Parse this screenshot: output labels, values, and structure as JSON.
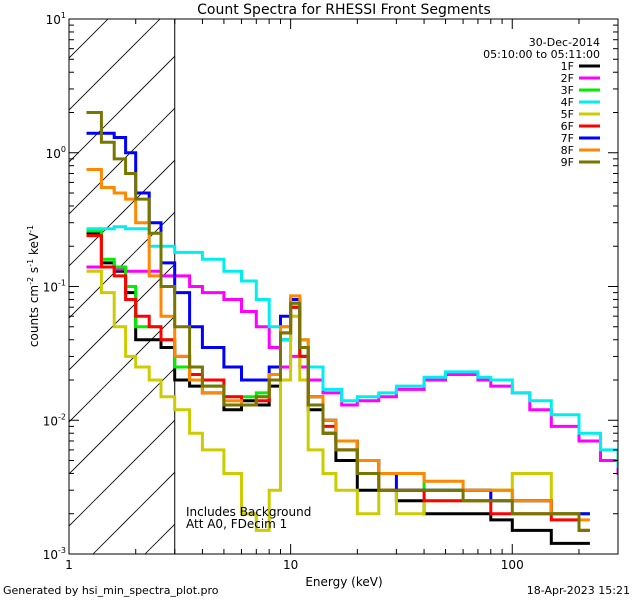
{
  "chart_data": {
    "type": "line",
    "title": "Count Spectra for RHESSI Front Segments",
    "xlabel": "Energy (keV)",
    "ylabel_base": "counts cm",
    "ylabel_sup1": "-2",
    "ylabel_mid": " s",
    "ylabel_sup2": "-1",
    "ylabel_end": " keV",
    "ylabel_sup3": "-1",
    "xscale": "log",
    "yscale": "log",
    "xlim": [
      1.0,
      300.0
    ],
    "ylim": [
      0.001,
      10.0
    ],
    "x_ticks": [
      {
        "value": 1,
        "label": "1"
      },
      {
        "value": 10,
        "label": "10"
      },
      {
        "value": 100,
        "label": "100"
      }
    ],
    "y_ticks": [
      {
        "value": 0.001,
        "base": "10",
        "exp": "-3"
      },
      {
        "value": 0.01,
        "base": "10",
        "exp": "-2"
      },
      {
        "value": 0.1,
        "base": "10",
        "exp": "-1"
      },
      {
        "value": 1,
        "base": "10",
        "exp": "0"
      },
      {
        "value": 10,
        "base": "10",
        "exp": "1"
      }
    ],
    "date": "30-Dec-2014",
    "time_range": "05:10:00 to 05:11:00",
    "hatched_region": {
      "x_from": 1.0,
      "x_to": 3.0
    },
    "annotation_line1": "Includes Background",
    "annotation_line2": "Att A0, FDecim 1",
    "series": [
      {
        "name": "1F",
        "color": "#000000",
        "points": [
          [
            1.2,
            0.25
          ],
          [
            1.4,
            0.15
          ],
          [
            1.6,
            0.13
          ],
          [
            1.8,
            0.09
          ],
          [
            2.0,
            0.04
          ],
          [
            2.3,
            0.04
          ],
          [
            2.6,
            0.035
          ],
          [
            3.0,
            0.02
          ],
          [
            3.5,
            0.018
          ],
          [
            4,
            0.016
          ],
          [
            5,
            0.012
          ],
          [
            6,
            0.014
          ],
          [
            7,
            0.013
          ],
          [
            8,
            0.018
          ],
          [
            9,
            0.04
          ],
          [
            10,
            0.07
          ],
          [
            11,
            0.03
          ],
          [
            12,
            0.012
          ],
          [
            14,
            0.008
          ],
          [
            16,
            0.005
          ],
          [
            20,
            0.003
          ],
          [
            25,
            0.003
          ],
          [
            30,
            0.0025
          ],
          [
            40,
            0.002
          ],
          [
            60,
            0.002
          ],
          [
            80,
            0.0018
          ],
          [
            100,
            0.0015
          ],
          [
            150,
            0.0012
          ],
          [
            200,
            0.0012
          ]
        ]
      },
      {
        "name": "2F",
        "color": "#ff00ff",
        "points": [
          [
            1.2,
            0.14
          ],
          [
            1.4,
            0.14
          ],
          [
            1.6,
            0.135
          ],
          [
            1.8,
            0.13
          ],
          [
            2.0,
            0.13
          ],
          [
            2.3,
            0.13
          ],
          [
            2.6,
            0.12
          ],
          [
            3.0,
            0.12
          ],
          [
            3.5,
            0.1
          ],
          [
            4,
            0.09
          ],
          [
            5,
            0.08
          ],
          [
            6,
            0.065
          ],
          [
            7,
            0.05
          ],
          [
            8,
            0.035
          ],
          [
            9,
            0.025
          ],
          [
            10,
            0.03
          ],
          [
            11,
            0.025
          ],
          [
            12,
            0.02
          ],
          [
            14,
            0.016
          ],
          [
            17,
            0.013
          ],
          [
            20,
            0.014
          ],
          [
            25,
            0.015
          ],
          [
            30,
            0.017
          ],
          [
            40,
            0.02
          ],
          [
            50,
            0.022
          ],
          [
            60,
            0.022
          ],
          [
            70,
            0.02
          ],
          [
            80,
            0.018
          ],
          [
            100,
            0.016
          ],
          [
            120,
            0.012
          ],
          [
            150,
            0.009
          ],
          [
            200,
            0.007
          ],
          [
            250,
            0.005
          ],
          [
            300,
            0.004
          ]
        ]
      },
      {
        "name": "3F",
        "color": "#00ee00",
        "points": [
          [
            1.2,
            0.26
          ],
          [
            1.4,
            0.16
          ],
          [
            1.6,
            0.14
          ],
          [
            1.8,
            0.1
          ],
          [
            2.0,
            0.05
          ],
          [
            2.3,
            0.05
          ],
          [
            2.6,
            0.04
          ],
          [
            3.0,
            0.025
          ],
          [
            3.5,
            0.02
          ],
          [
            4,
            0.018
          ],
          [
            5,
            0.015
          ],
          [
            6,
            0.015
          ],
          [
            7,
            0.016
          ],
          [
            8,
            0.02
          ],
          [
            9,
            0.05
          ],
          [
            10,
            0.075
          ],
          [
            11,
            0.03
          ],
          [
            12,
            0.015
          ],
          [
            14,
            0.01
          ],
          [
            16,
            0.007
          ],
          [
            20,
            0.005
          ],
          [
            25,
            0.004
          ],
          [
            30,
            0.004
          ],
          [
            40,
            0.003
          ],
          [
            60,
            0.003
          ],
          [
            80,
            0.003
          ],
          [
            100,
            0.0025
          ],
          [
            150,
            0.002
          ],
          [
            200,
            0.002
          ]
        ]
      },
      {
        "name": "4F",
        "color": "#00eeee",
        "points": [
          [
            1.2,
            0.27
          ],
          [
            1.4,
            0.27
          ],
          [
            1.6,
            0.28
          ],
          [
            1.8,
            0.27
          ],
          [
            2.0,
            0.27
          ],
          [
            2.3,
            0.2
          ],
          [
            2.6,
            0.2
          ],
          [
            3.0,
            0.18
          ],
          [
            3.5,
            0.18
          ],
          [
            4,
            0.16
          ],
          [
            5,
            0.13
          ],
          [
            6,
            0.11
          ],
          [
            7,
            0.08
          ],
          [
            8,
            0.05
          ],
          [
            9,
            0.04
          ],
          [
            10,
            0.06
          ],
          [
            11,
            0.04
          ],
          [
            12,
            0.025
          ],
          [
            14,
            0.017
          ],
          [
            17,
            0.014
          ],
          [
            20,
            0.015
          ],
          [
            25,
            0.016
          ],
          [
            30,
            0.018
          ],
          [
            40,
            0.021
          ],
          [
            50,
            0.023
          ],
          [
            60,
            0.023
          ],
          [
            70,
            0.021
          ],
          [
            80,
            0.02
          ],
          [
            100,
            0.016
          ],
          [
            120,
            0.014
          ],
          [
            150,
            0.011
          ],
          [
            200,
            0.008
          ],
          [
            250,
            0.006
          ],
          [
            300,
            0.0045
          ]
        ]
      },
      {
        "name": "5F",
        "color": "#cccc00",
        "points": [
          [
            1.2,
            0.13
          ],
          [
            1.4,
            0.09
          ],
          [
            1.6,
            0.05
          ],
          [
            1.8,
            0.03
          ],
          [
            2.0,
            0.025
          ],
          [
            2.3,
            0.02
          ],
          [
            2.6,
            0.015
          ],
          [
            3.0,
            0.012
          ],
          [
            3.5,
            0.008
          ],
          [
            4,
            0.006
          ],
          [
            5,
            0.004
          ],
          [
            6,
            0.002
          ],
          [
            7,
            0.0015
          ],
          [
            8,
            0.003
          ],
          [
            9,
            0.02
          ],
          [
            10,
            0.06
          ],
          [
            11,
            0.02
          ],
          [
            12,
            0.006
          ],
          [
            14,
            0.004
          ],
          [
            16,
            0.003
          ],
          [
            20,
            0.002
          ],
          [
            25,
            0.003
          ],
          [
            30,
            0.002
          ],
          [
            40,
            0.0025
          ],
          [
            60,
            0.0025
          ],
          [
            80,
            0.003
          ],
          [
            100,
            0.004
          ],
          [
            150,
            0.002
          ],
          [
            200,
            0.0015
          ]
        ]
      },
      {
        "name": "6F",
        "color": "#ff0000",
        "points": [
          [
            1.2,
            0.24
          ],
          [
            1.4,
            0.14
          ],
          [
            1.6,
            0.12
          ],
          [
            1.8,
            0.08
          ],
          [
            2.0,
            0.06
          ],
          [
            2.3,
            0.05
          ],
          [
            2.6,
            0.04
          ],
          [
            3.0,
            0.03
          ],
          [
            3.5,
            0.022
          ],
          [
            4,
            0.02
          ],
          [
            5,
            0.015
          ],
          [
            6,
            0.013
          ],
          [
            7,
            0.014
          ],
          [
            8,
            0.02
          ],
          [
            9,
            0.045
          ],
          [
            10,
            0.07
          ],
          [
            11,
            0.03
          ],
          [
            12,
            0.013
          ],
          [
            14,
            0.009
          ],
          [
            16,
            0.006
          ],
          [
            20,
            0.004
          ],
          [
            25,
            0.003
          ],
          [
            30,
            0.003
          ],
          [
            40,
            0.0025
          ],
          [
            60,
            0.0025
          ],
          [
            80,
            0.002
          ],
          [
            100,
            0.002
          ],
          [
            150,
            0.0018
          ],
          [
            200,
            0.0015
          ]
        ]
      },
      {
        "name": "7F",
        "color": "#0000ff",
        "points": [
          [
            1.2,
            1.4
          ],
          [
            1.4,
            1.4
          ],
          [
            1.6,
            1.3
          ],
          [
            1.8,
            1.0
          ],
          [
            2.0,
            0.5
          ],
          [
            2.3,
            0.3
          ],
          [
            2.6,
            0.15
          ],
          [
            3.0,
            0.09
          ],
          [
            3.5,
            0.05
          ],
          [
            4,
            0.035
          ],
          [
            5,
            0.025
          ],
          [
            6,
            0.02
          ],
          [
            7,
            0.02
          ],
          [
            8,
            0.025
          ],
          [
            9,
            0.06
          ],
          [
            10,
            0.08
          ],
          [
            11,
            0.035
          ],
          [
            12,
            0.015
          ],
          [
            14,
            0.01
          ],
          [
            16,
            0.007
          ],
          [
            20,
            0.005
          ],
          [
            25,
            0.004
          ],
          [
            30,
            0.003
          ],
          [
            40,
            0.003
          ],
          [
            60,
            0.003
          ],
          [
            80,
            0.0025
          ],
          [
            100,
            0.0025
          ],
          [
            150,
            0.002
          ],
          [
            200,
            0.002
          ]
        ]
      },
      {
        "name": "8F",
        "color": "#ff8800",
        "points": [
          [
            1.2,
            0.75
          ],
          [
            1.4,
            0.55
          ],
          [
            1.6,
            0.5
          ],
          [
            1.8,
            0.45
          ],
          [
            2.0,
            0.3
          ],
          [
            2.3,
            0.12
          ],
          [
            2.6,
            0.06
          ],
          [
            3.0,
            0.03
          ],
          [
            3.5,
            0.02
          ],
          [
            4,
            0.016
          ],
          [
            5,
            0.014
          ],
          [
            6,
            0.013
          ],
          [
            7,
            0.015
          ],
          [
            8,
            0.022
          ],
          [
            9,
            0.05
          ],
          [
            10,
            0.085
          ],
          [
            11,
            0.04
          ],
          [
            12,
            0.015
          ],
          [
            14,
            0.01
          ],
          [
            16,
            0.007
          ],
          [
            20,
            0.005
          ],
          [
            25,
            0.004
          ],
          [
            30,
            0.004
          ],
          [
            40,
            0.0035
          ],
          [
            60,
            0.003
          ],
          [
            80,
            0.003
          ],
          [
            100,
            0.0025
          ],
          [
            150,
            0.002
          ],
          [
            200,
            0.0018
          ]
        ]
      },
      {
        "name": "9F",
        "color": "#777700",
        "points": [
          [
            1.2,
            2.0
          ],
          [
            1.4,
            1.2
          ],
          [
            1.6,
            0.9
          ],
          [
            1.8,
            0.7
          ],
          [
            2.0,
            0.45
          ],
          [
            2.3,
            0.25
          ],
          [
            2.6,
            0.1
          ],
          [
            3.0,
            0.05
          ],
          [
            3.5,
            0.025
          ],
          [
            4,
            0.018
          ],
          [
            5,
            0.013
          ],
          [
            6,
            0.013
          ],
          [
            7,
            0.015
          ],
          [
            8,
            0.02
          ],
          [
            9,
            0.045
          ],
          [
            10,
            0.075
          ],
          [
            11,
            0.035
          ],
          [
            12,
            0.013
          ],
          [
            14,
            0.008
          ],
          [
            16,
            0.006
          ],
          [
            20,
            0.004
          ],
          [
            25,
            0.003
          ],
          [
            30,
            0.003
          ],
          [
            40,
            0.003
          ],
          [
            60,
            0.0025
          ],
          [
            80,
            0.0025
          ],
          [
            100,
            0.002
          ],
          [
            150,
            0.002
          ],
          [
            200,
            0.0015
          ]
        ]
      }
    ]
  },
  "footer": {
    "left": "Generated by hsi_min_spectra_plot.pro",
    "right": "18-Apr-2023 15:21"
  }
}
